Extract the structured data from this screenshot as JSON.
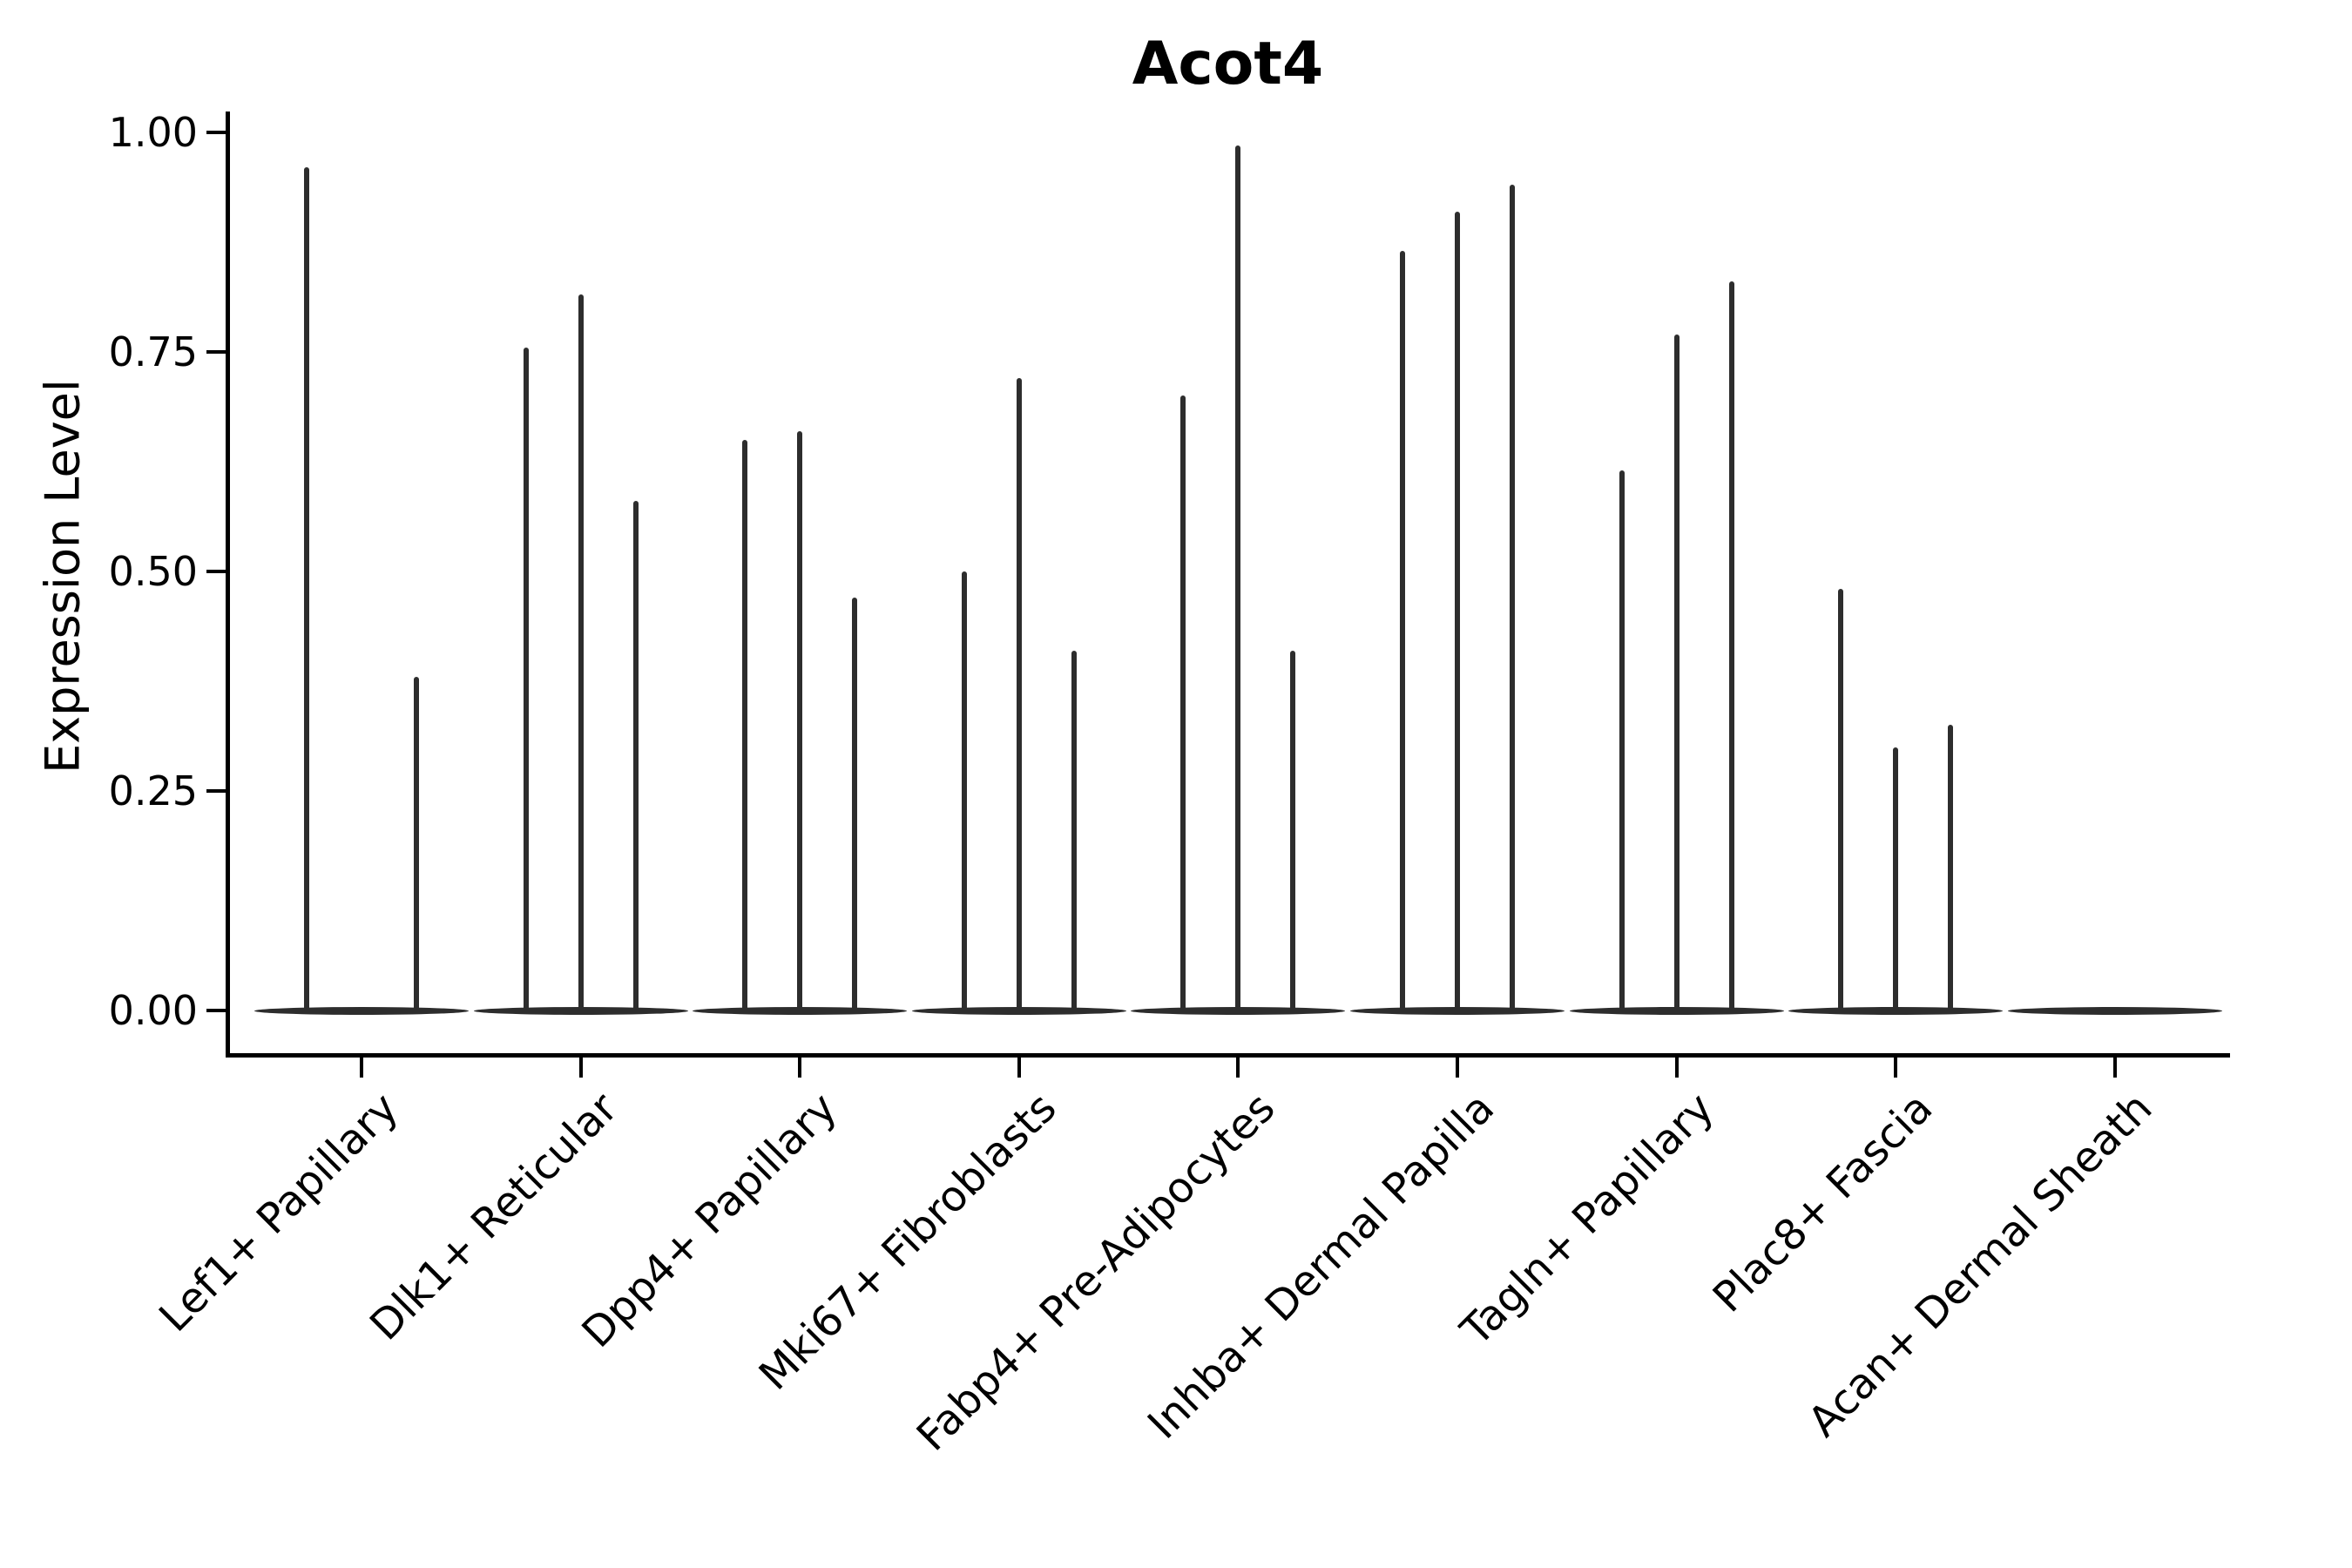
{
  "chart_data": {
    "type": "violin",
    "title": "Acot4",
    "xlabel": "",
    "ylabel": "Expression Level",
    "ylim": [
      0,
      1
    ],
    "grid": false,
    "legend": "none",
    "ytick_labels": [
      "0.00",
      "0.25",
      "0.50",
      "0.75",
      "1.00"
    ],
    "ytick_values": [
      0.0,
      0.25,
      0.5,
      0.75,
      1.0
    ],
    "violin_color": "#2d2d2d",
    "axis_color": "#000000",
    "categories": [
      "Lef1+ Papillary",
      "Dlk1+ Reticular",
      "Dpp4+ Papillary",
      "Mki67+ Fibroblasts",
      "Fabp4+ Pre-Adipocytes",
      "Inhba+ Dermal Papilla",
      "Tagln+ Papillary",
      "Plac8+ Fascia",
      "Acan+ Dermal Sheath"
    ],
    "groups": [
      {
        "category": "Lef1+ Papillary",
        "spikes": [
          {
            "slot": -1,
            "value": 0.96
          },
          {
            "slot": 1,
            "value": 0.38
          }
        ]
      },
      {
        "category": "Dlk1+ Reticular",
        "spikes": [
          {
            "slot": -1,
            "value": 0.755
          },
          {
            "slot": 0,
            "value": 0.815
          },
          {
            "slot": 1,
            "value": 0.58
          }
        ]
      },
      {
        "category": "Dpp4+ Papillary",
        "spikes": [
          {
            "slot": -1,
            "value": 0.65
          },
          {
            "slot": 0,
            "value": 0.66
          },
          {
            "slot": 1,
            "value": 0.47
          }
        ]
      },
      {
        "category": "Mki67+ Fibroblasts",
        "spikes": [
          {
            "slot": -1,
            "value": 0.5
          },
          {
            "slot": 0,
            "value": 0.72
          },
          {
            "slot": 1,
            "value": 0.41
          }
        ]
      },
      {
        "category": "Fabp4+ Pre-Adipocytes",
        "spikes": [
          {
            "slot": -1,
            "value": 0.7
          },
          {
            "slot": 0,
            "value": 0.985
          },
          {
            "slot": 1,
            "value": 0.41
          }
        ]
      },
      {
        "category": "Inhba+ Dermal Papilla",
        "spikes": [
          {
            "slot": -1,
            "value": 0.865
          },
          {
            "slot": 0,
            "value": 0.91
          },
          {
            "slot": 1,
            "value": 0.94
          }
        ]
      },
      {
        "category": "Tagln+ Papillary",
        "spikes": [
          {
            "slot": -1,
            "value": 0.615
          },
          {
            "slot": 0,
            "value": 0.77
          },
          {
            "slot": 1,
            "value": 0.83
          }
        ]
      },
      {
        "category": "Plac8+ Fascia",
        "spikes": [
          {
            "slot": -1,
            "value": 0.48
          },
          {
            "slot": 0,
            "value": 0.3
          },
          {
            "slot": 1,
            "value": 0.325
          }
        ]
      },
      {
        "category": "Acan+ Dermal Sheath",
        "spikes": []
      }
    ]
  }
}
